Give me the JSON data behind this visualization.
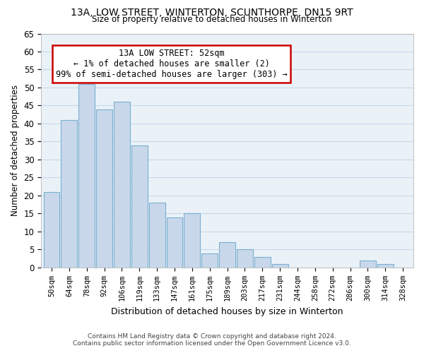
{
  "title": "13A, LOW STREET, WINTERTON, SCUNTHORPE, DN15 9RT",
  "subtitle": "Size of property relative to detached houses in Winterton",
  "xlabel": "Distribution of detached houses by size in Winterton",
  "ylabel": "Number of detached properties",
  "bar_labels": [
    "50sqm",
    "64sqm",
    "78sqm",
    "92sqm",
    "106sqm",
    "119sqm",
    "133sqm",
    "147sqm",
    "161sqm",
    "175sqm",
    "189sqm",
    "203sqm",
    "217sqm",
    "231sqm",
    "244sqm",
    "258sqm",
    "272sqm",
    "286sqm",
    "300sqm",
    "314sqm",
    "328sqm"
  ],
  "bar_values": [
    21,
    41,
    51,
    44,
    46,
    34,
    18,
    14,
    15,
    4,
    7,
    5,
    3,
    1,
    0,
    0,
    0,
    0,
    2,
    1,
    0
  ],
  "bar_color": "#c8d8ea",
  "bar_edge_color": "#7aaed0",
  "highlight_edge_color": "#cc0000",
  "ylim": [
    0,
    65
  ],
  "yticks": [
    0,
    5,
    10,
    15,
    20,
    25,
    30,
    35,
    40,
    45,
    50,
    55,
    60,
    65
  ],
  "annotation_title": "13A LOW STREET: 52sqm",
  "annotation_line1": "← 1% of detached houses are smaller (2)",
  "annotation_line2": "99% of semi-detached houses are larger (303) →",
  "annotation_box_color": "#ffffff",
  "annotation_box_edge_color": "#cc0000",
  "footer_line1": "Contains HM Land Registry data © Crown copyright and database right 2024.",
  "footer_line2": "Contains public sector information licensed under the Open Government Licence v3.0.",
  "background_color": "#ffffff",
  "plot_bg_color": "#eaf2f8",
  "grid_color": "#c8d8e8"
}
